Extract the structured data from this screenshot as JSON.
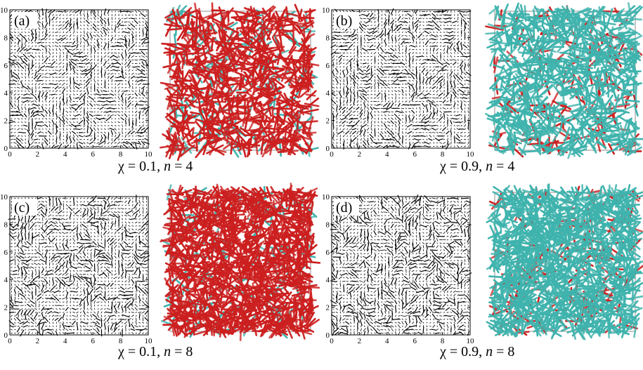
{
  "figure": {
    "panels": [
      {
        "id": "a",
        "label": "(a)",
        "chi": "χ = 0.1,",
        "n_symbol": "n",
        "n_text": "= 4",
        "n": 4,
        "chi_value": 0.1,
        "dominant": "red"
      },
      {
        "id": "b",
        "label": "(b)",
        "chi": "χ = 0.9,",
        "n_symbol": "n",
        "n_text": "= 4",
        "n": 4,
        "chi_value": 0.9,
        "dominant": "teal"
      },
      {
        "id": "c",
        "label": "(c)",
        "chi": "χ = 0.1,",
        "n_symbol": "n",
        "n_text": "= 8",
        "n": 8,
        "chi_value": 0.1,
        "dominant": "red"
      },
      {
        "id": "d",
        "label": "(d)",
        "chi": "χ = 0.9,",
        "n_symbol": "n",
        "n_text": "= 8",
        "n": 8,
        "chi_value": 0.9,
        "dominant": "teal"
      }
    ],
    "axis": {
      "xlim": [
        0,
        10
      ],
      "ylim": [
        0,
        10
      ],
      "x_ticks": [
        "0",
        "2",
        "4",
        "6",
        "8",
        "10"
      ],
      "y_ticks": [
        "0",
        "2",
        "4",
        "6",
        "8",
        "10"
      ]
    },
    "colors": {
      "red_rod": "#cc1f1f",
      "teal_rod": "#3fb3ad",
      "vector": "#000000",
      "box_outline": "#b4b4b4"
    }
  }
}
